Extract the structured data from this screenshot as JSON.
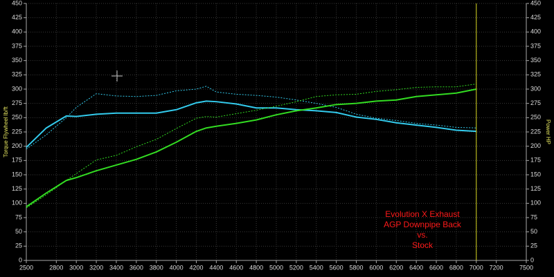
{
  "chart_data": {
    "type": "line",
    "ylabel": "Torque Flywheel lb/ft",
    "y2label": "Power HP",
    "annotations": [
      "Evolution X Exhaust",
      "AGP Downpipe Back",
      "vs.",
      "Stock"
    ],
    "annotation_color": "#ff1a1a",
    "cursor_x": 7000,
    "cursor_color": "#d8d820",
    "x": [
      2500,
      2700,
      2900,
      3000,
      3200,
      3400,
      3600,
      3800,
      4000,
      4200,
      4300,
      4400,
      4600,
      4800,
      5000,
      5200,
      5400,
      5600,
      5800,
      6000,
      6200,
      6400,
      6600,
      6800,
      7000
    ],
    "series": [
      {
        "color": "#33ccee",
        "style": "solid",
        "values": [
          198,
          232,
          253,
          252,
          256,
          258,
          258,
          258,
          264,
          276,
          279,
          278,
          274,
          267,
          267,
          264,
          262,
          259,
          251,
          247,
          241,
          237,
          233,
          228,
          226
        ]
      },
      {
        "color": "#33ccee",
        "style": "dotted",
        "values": [
          195,
          220,
          250,
          268,
          292,
          288,
          287,
          289,
          297,
          300,
          305,
          295,
          291,
          289,
          286,
          281,
          275,
          268,
          256,
          249,
          245,
          240,
          237,
          233,
          232
        ]
      },
      {
        "color": "#33dd22",
        "style": "solid",
        "axis": "y2",
        "values": [
          94,
          118,
          140,
          145,
          157,
          167,
          177,
          190,
          207,
          226,
          232,
          235,
          240,
          246,
          255,
          262,
          267,
          273,
          275,
          279,
          281,
          287,
          290,
          293,
          300
        ]
      },
      {
        "color": "#33dd22",
        "style": "dotted",
        "axis": "y2",
        "values": [
          92,
          115,
          140,
          152,
          176,
          184,
          199,
          212,
          231,
          249,
          252,
          251,
          257,
          263,
          270,
          278,
          287,
          290,
          291,
          296,
          299,
          303,
          304,
          304,
          309
        ]
      }
    ],
    "xlim": [
      2500,
      7500
    ],
    "xticks": [
      2500,
      2800,
      3000,
      3200,
      3400,
      3600,
      3800,
      4000,
      4200,
      4400,
      4600,
      4800,
      5000,
      5200,
      5400,
      5600,
      5800,
      6000,
      6200,
      6400,
      6600,
      6800,
      7000,
      7200,
      7500
    ],
    "ylim": [
      0,
      450
    ],
    "yticks": [
      0,
      25,
      50,
      75,
      100,
      125,
      150,
      175,
      200,
      225,
      250,
      275,
      300,
      325,
      350,
      375,
      400,
      425,
      450
    ],
    "y2lim": [
      0,
      450
    ],
    "y2ticks": [
      0,
      25,
      50,
      75,
      100,
      125,
      150,
      175,
      200,
      225,
      250,
      275,
      300,
      325,
      350,
      375,
      400,
      425,
      450
    ],
    "grid": true
  }
}
